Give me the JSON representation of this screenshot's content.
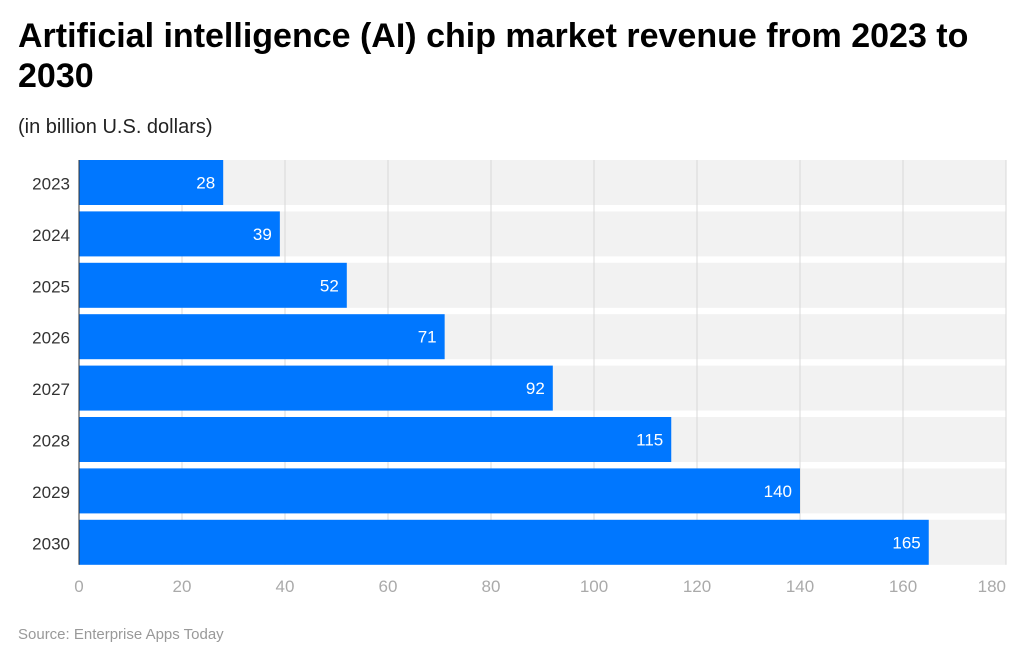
{
  "chart_data": {
    "type": "bar",
    "orientation": "horizontal",
    "title": "Artificial intelligence (AI) chip market revenue from 2023 to 2030",
    "subtitle": "(in billion U.S. dollars)",
    "categories": [
      "2023",
      "2024",
      "2025",
      "2026",
      "2027",
      "2028",
      "2029",
      "2030"
    ],
    "values": [
      28,
      39,
      52,
      71,
      92,
      115,
      140,
      165
    ],
    "xlim": [
      0,
      180
    ],
    "xticks": [
      0,
      20,
      40,
      60,
      80,
      100,
      120,
      140,
      160,
      180
    ],
    "grid": true,
    "data_labels": true,
    "bar_color": "#0077ff",
    "band_color": "#f2f2f2"
  },
  "source": "Source: Enterprise Apps Today"
}
